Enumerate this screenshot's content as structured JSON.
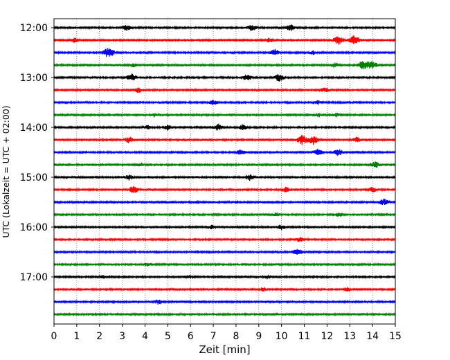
{
  "chart_data": {
    "type": "line",
    "title": "",
    "xlabel": "Zeit  [min]",
    "ylabel": "UTC (Lokalzeit = UTC + 02:00)",
    "xlim": [
      0,
      15
    ],
    "xticks": [
      0,
      1,
      2,
      3,
      4,
      5,
      6,
      7,
      8,
      9,
      10,
      11,
      12,
      13,
      14,
      15
    ],
    "xtick_labels": [
      "0",
      "1",
      "2",
      "3",
      "4",
      "5",
      "6",
      "7",
      "8",
      "9",
      "10",
      "11",
      "12",
      "13",
      "14",
      "15"
    ],
    "ytick_labels": [
      "12:00",
      "13:00",
      "14:00",
      "15:00",
      "16:00",
      "17:00"
    ],
    "trace_interval_min": 15,
    "grid": "vertical dotted at each minute",
    "legend": "none",
    "colors": [
      "#000000",
      "#ff0000",
      "#0000ff",
      "#008000"
    ],
    "series": [
      {
        "start": "12:00",
        "color": "#000000",
        "events": [
          [
            3.2,
            0.5
          ],
          [
            8.7,
            0.5
          ],
          [
            10.4,
            0.5
          ]
        ]
      },
      {
        "start": "12:15",
        "color": "#ff0000",
        "events": [
          [
            0.9,
            0.4
          ],
          [
            9.5,
            0.4
          ],
          [
            12.5,
            0.7
          ],
          [
            13.2,
            0.7
          ]
        ]
      },
      {
        "start": "12:30",
        "color": "#0000ff",
        "events": [
          [
            2.4,
            0.8
          ],
          [
            9.7,
            0.5
          ],
          [
            11.4,
            0.3
          ]
        ]
      },
      {
        "start": "12:45",
        "color": "#008000",
        "events": [
          [
            3.5,
            0.3
          ],
          [
            12.3,
            0.4
          ],
          [
            13.6,
            0.7
          ],
          [
            14.0,
            0.6
          ]
        ]
      },
      {
        "start": "13:00",
        "color": "#000000",
        "events": [
          [
            3.4,
            0.6
          ],
          [
            8.5,
            0.5
          ],
          [
            9.9,
            0.6
          ]
        ]
      },
      {
        "start": "13:15",
        "color": "#ff0000",
        "events": [
          [
            3.7,
            0.4
          ],
          [
            11.9,
            0.4
          ]
        ]
      },
      {
        "start": "13:30",
        "color": "#0000ff",
        "events": [
          [
            7.0,
            0.4
          ],
          [
            11.6,
            0.3
          ]
        ]
      },
      {
        "start": "13:45",
        "color": "#008000",
        "events": [
          [
            4.4,
            0.3
          ],
          [
            11.6,
            0.3
          ],
          [
            12.4,
            0.3
          ]
        ]
      },
      {
        "start": "14:00",
        "color": "#000000",
        "events": [
          [
            4.1,
            0.3
          ],
          [
            5.0,
            0.4
          ],
          [
            7.2,
            0.5
          ],
          [
            8.3,
            0.4
          ]
        ]
      },
      {
        "start": "14:15",
        "color": "#ff0000",
        "events": [
          [
            3.3,
            0.5
          ],
          [
            10.9,
            0.7
          ],
          [
            11.4,
            0.7
          ],
          [
            13.3,
            0.4
          ]
        ]
      },
      {
        "start": "14:30",
        "color": "#0000ff",
        "events": [
          [
            8.2,
            0.4
          ],
          [
            11.6,
            0.5
          ],
          [
            12.5,
            0.5
          ]
        ]
      },
      {
        "start": "14:45",
        "color": "#008000",
        "events": [
          [
            3.8,
            0.3
          ],
          [
            14.1,
            0.5
          ]
        ]
      },
      {
        "start": "15:00",
        "color": "#000000",
        "events": [
          [
            3.3,
            0.4
          ],
          [
            8.6,
            0.5
          ]
        ]
      },
      {
        "start": "15:15",
        "color": "#ff0000",
        "events": [
          [
            3.5,
            0.6
          ],
          [
            10.2,
            0.4
          ],
          [
            14.0,
            0.4
          ]
        ]
      },
      {
        "start": "15:30",
        "color": "#0000ff",
        "events": [
          [
            14.5,
            0.5
          ]
        ]
      },
      {
        "start": "15:45",
        "color": "#008000",
        "events": [
          [
            9.8,
            0.3
          ],
          [
            12.5,
            0.4
          ]
        ]
      },
      {
        "start": "16:00",
        "color": "#000000",
        "events": [
          [
            6.9,
            0.3
          ],
          [
            10.0,
            0.4
          ]
        ]
      },
      {
        "start": "16:15",
        "color": "#ff0000",
        "events": [
          [
            10.8,
            0.4
          ]
        ]
      },
      {
        "start": "16:30",
        "color": "#0000ff",
        "events": [
          [
            10.7,
            0.5
          ]
        ]
      },
      {
        "start": "16:45",
        "color": "#008000",
        "events": [
          [
            4.1,
            0.3
          ]
        ]
      },
      {
        "start": "17:00",
        "color": "#000000",
        "events": [
          [
            2.1,
            0.3
          ],
          [
            5.9,
            0.3
          ],
          [
            9.4,
            0.3
          ]
        ]
      },
      {
        "start": "17:15",
        "color": "#ff0000",
        "events": [
          [
            9.2,
            0.3
          ],
          [
            12.9,
            0.3
          ]
        ]
      },
      {
        "start": "17:30",
        "color": "#0000ff",
        "events": [
          [
            4.6,
            0.4
          ]
        ]
      },
      {
        "start": "17:45",
        "color": "#008000",
        "events": []
      }
    ]
  }
}
